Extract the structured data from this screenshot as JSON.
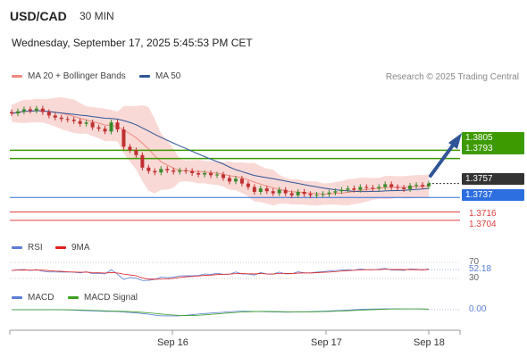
{
  "header": {
    "symbol": "USD/CAD",
    "timeframe": "30 MIN",
    "datetime": "Wednesday, September 17, 2025 5:45:53 PM CET"
  },
  "legend_main": [
    {
      "label": "MA 20 + Bollinger Bands",
      "color": "#f08a80"
    },
    {
      "label": "MA 50",
      "color": "#2f5597"
    }
  ],
  "credit": "Research © 2025 Trading Central",
  "legend_rsi": [
    {
      "label": "RSI",
      "color": "#5b7fd6"
    },
    {
      "label": "9MA",
      "color": "#e02020"
    }
  ],
  "legend_macd": [
    {
      "label": "MACD",
      "color": "#5b7fd6"
    },
    {
      "label": "MACD Signal",
      "color": "#3aa020"
    }
  ],
  "price_levels": {
    "resistance": [
      {
        "label": "1.3805",
        "value": 1.3805,
        "color": "#3d9a00"
      },
      {
        "label": "1.3793",
        "value": 1.3793,
        "color": "#3d9a00"
      }
    ],
    "current": {
      "label": "1.3757",
      "value": 1.3757,
      "color": "#333333"
    },
    "pivot": {
      "label": "1.3737",
      "value": 1.3737,
      "color": "#2e6fe0"
    },
    "support": [
      {
        "label": "1.3716",
        "value": 1.3716,
        "color": "#e04040"
      },
      {
        "label": "1.3704",
        "value": 1.3704,
        "color": "#e04040"
      }
    ]
  },
  "rsi_levels": {
    "upper": "70",
    "value": "52.18",
    "lower": "30"
  },
  "macd_value": "0.00",
  "x_ticks": [
    "Sep 16",
    "Sep 17",
    "Sep 18"
  ],
  "colors": {
    "up": "#3a8a2a",
    "down": "#c03030",
    "arrow": "#2f5597",
    "band": "#f7c9c4"
  },
  "chart_data": {
    "type": "candlestick",
    "series_note": "USD/CAD 30-minute candles",
    "x_ticks": [
      "Sep 16",
      "Sep 17",
      "Sep 18"
    ],
    "closes": [
      1.3858,
      1.3861,
      1.3864,
      1.3862,
      1.3865,
      1.386,
      1.3855,
      1.3852,
      1.385,
      1.3849,
      1.3847,
      1.3843,
      1.3845,
      1.3838,
      1.3836,
      1.3832,
      1.3845,
      1.3835,
      1.381,
      1.3805,
      1.3798,
      1.378,
      1.3775,
      1.3773,
      1.3778,
      1.3776,
      1.3774,
      1.3776,
      1.3775,
      1.3772,
      1.377,
      1.3772,
      1.3769,
      1.377,
      1.3765,
      1.376,
      1.3764,
      1.3757,
      1.3752,
      1.3745,
      1.375,
      1.3746,
      1.3743,
      1.3748,
      1.3743,
      1.374,
      1.3745,
      1.3742,
      1.374,
      1.3741,
      1.3742,
      1.3744,
      1.3746,
      1.3748,
      1.375,
      1.3748,
      1.3752,
      1.3751,
      1.375,
      1.3752,
      1.3756,
      1.3752,
      1.3751,
      1.3749,
      1.3754,
      1.3755,
      1.3753,
      1.3757
    ],
    "ma_levels": {
      "resistance_1": 1.3805,
      "resistance_2": 1.3793,
      "current": 1.3757,
      "pivot": 1.3737,
      "support_1": 1.3716,
      "support_2": 1.3704
    },
    "rsi": {
      "value": 52.18,
      "upper": 70,
      "lower": 30
    },
    "macd": {
      "value": 0.0
    }
  }
}
